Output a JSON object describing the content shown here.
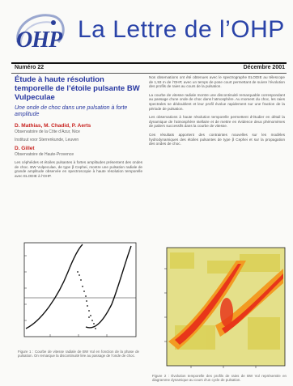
{
  "header": {
    "logo_text": "OHP",
    "title": "La Lettre de l’OHP",
    "issue": "Numéro 22",
    "date": "Décembre 2001"
  },
  "article": {
    "headline": "Étude à haute résolution temporelle de l’étoile pulsante BW Vulpeculae",
    "subhead": "Une onde de choc dans une pulsation à forte amplitude",
    "authors_1": "D. Mathias, M. Chadid, P. Aerts",
    "affil_1": "Observatoire de la Côte d’Azur, Nice",
    "affil_1b": "Instituut voor Sterrenkunde, Leuven",
    "authors_2": "D. Gillet",
    "affil_2": "Observatoire de Haute-Provence",
    "intro": "Les céphéides et étoiles pulsantes à fortes amplitudes présentent des ondes de choc. BW Vulpeculae, de type β Cephei, montre une pulsation radiale de grande amplitude observée en spectroscopie à haute résolution temporelle avec ELODIE à l’OHP.",
    "col2_p1": "Nos observations ont été obtenues avec le spectrographe ELODIE au télescope de 1,93 m de l’OHP, avec un temps de pose court permettant de suivre l’évolution des profils de raies au cours de la pulsation.",
    "col2_p2": "La courbe de vitesse radiale montre une discontinuité remarquable correspondant au passage d’une onde de choc dans l’atmosphère. Au moment du choc, les raies spectrales se dédoublent et leur profil évolue rapidement sur une fraction de la période de pulsation.",
    "col2_p3": "Les observations à haute résolution temporelle permettent d’étudier en détail la dynamique de l’atmosphère stellaire et de mettre en évidence deux phénomènes de paliers successifs dans la courbe de vitesse.",
    "col2_p4": "Ces résultats apportent des contraintes nouvelles sur les modèles hydrodynamiques des étoiles pulsantes de type β Cephei et sur la propagation des ondes de choc.",
    "caption_1": "Figure 1 : Courbe de vitesse radiale de BW Vul en fonction de la phase de pulsation. On remarque la discontinuité liée au passage de l’onde de choc.",
    "caption_2": "Figure 2 : Évolution temporelle des profils de raies de BW Vul représentée en diagramme dynamique au cours d’un cycle de pulsation."
  },
  "colors": {
    "title_blue": "#2a43a8",
    "author_red": "#c8221f",
    "heat_red": "#e8361a",
    "heat_orange": "#f29b22",
    "heat_yellow": "#e9df45"
  }
}
